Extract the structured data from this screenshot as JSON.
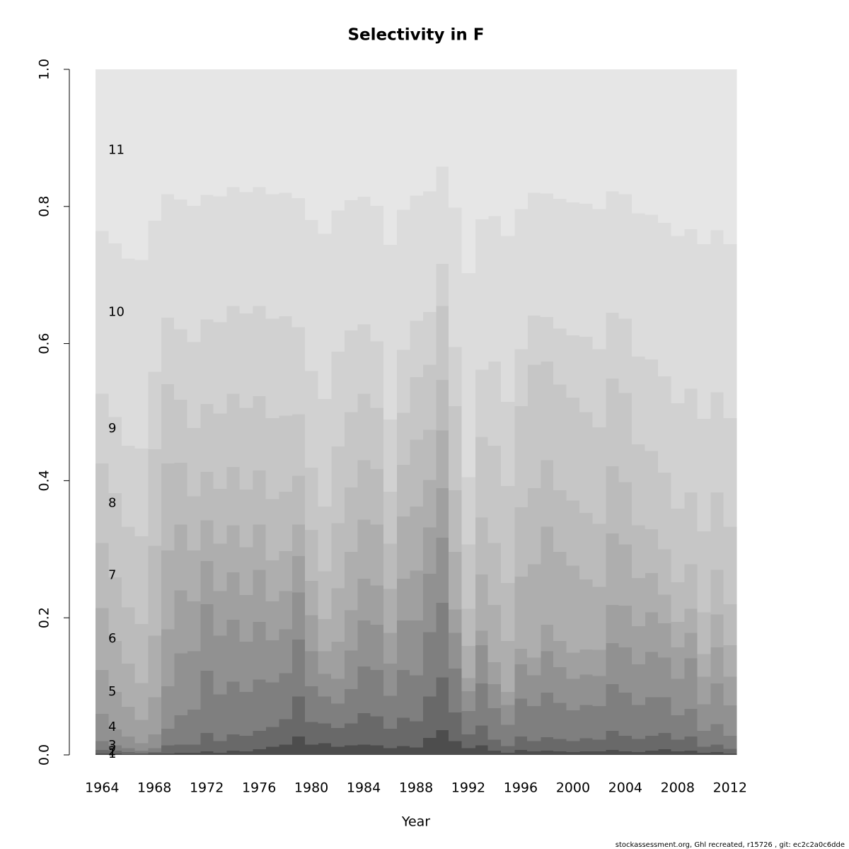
{
  "chart_data": {
    "type": "stacked-bar",
    "title": "Selectivity in F",
    "x_label": "Year",
    "footer": "stockassessment.org, Ghl  recreated, r15726 , git: ec2c2a0c6dde",
    "x": [
      1964,
      1965,
      1966,
      1967,
      1968,
      1969,
      1970,
      1971,
      1972,
      1973,
      1974,
      1975,
      1976,
      1977,
      1978,
      1979,
      1980,
      1981,
      1982,
      1983,
      1984,
      1985,
      1986,
      1987,
      1988,
      1989,
      1990,
      1991,
      1992,
      1993,
      1994,
      1995,
      1996,
      1997,
      1998,
      1999,
      2000,
      2001,
      2002,
      2003,
      2004,
      2005,
      2006,
      2007,
      2008,
      2009,
      2010,
      2011,
      2012
    ],
    "xlim": [
      1963.5,
      2012.5
    ],
    "xticks": [
      1964,
      1968,
      1972,
      1976,
      1980,
      1984,
      1988,
      1992,
      1996,
      2000,
      2004,
      2008,
      2012
    ],
    "ylim": [
      0,
      1
    ],
    "yticks": [
      {
        "value": 0,
        "label": "0.0"
      },
      0.2,
      0.4,
      0.6,
      0.8,
      {
        "value": 1,
        "label": "1.0"
      }
    ],
    "grid": false,
    "series": [
      {
        "name": "1",
        "color": "#4d4d4d",
        "values": [
          0.002,
          0.002,
          0.001,
          0.001,
          0.002,
          0.002,
          0.003,
          0.003,
          0.005,
          0.003,
          0.006,
          0.005,
          0.008,
          0.012,
          0.015,
          0.027,
          0.015,
          0.017,
          0.012,
          0.014,
          0.015,
          0.014,
          0.01,
          0.013,
          0.011,
          0.025,
          0.036,
          0.02,
          0.01,
          0.014,
          0.006,
          0.003,
          0.007,
          0.005,
          0.006,
          0.005,
          0.004,
          0.005,
          0.005,
          0.007,
          0.005,
          0.004,
          0.006,
          0.008,
          0.005,
          0.006,
          0.003,
          0.004,
          0.002
        ]
      },
      {
        "name": "2",
        "color": "#696969",
        "values": [
          0.005,
          0.004,
          0.003,
          0.002,
          0.002,
          0.012,
          0.012,
          0.012,
          0.027,
          0.017,
          0.024,
          0.023,
          0.027,
          0.029,
          0.037,
          0.058,
          0.033,
          0.029,
          0.027,
          0.032,
          0.046,
          0.042,
          0.028,
          0.041,
          0.038,
          0.06,
          0.077,
          0.042,
          0.02,
          0.029,
          0.016,
          0.01,
          0.02,
          0.015,
          0.02,
          0.018,
          0.016,
          0.019,
          0.017,
          0.028,
          0.023,
          0.019,
          0.022,
          0.024,
          0.017,
          0.021,
          0.009,
          0.011,
          0.007
        ]
      },
      {
        "name": "3",
        "color": "#7f7f7f",
        "values": [
          0.013,
          0.008,
          0.006,
          0.003,
          0.006,
          0.024,
          0.043,
          0.051,
          0.091,
          0.068,
          0.077,
          0.064,
          0.075,
          0.065,
          0.067,
          0.083,
          0.052,
          0.039,
          0.036,
          0.05,
          0.068,
          0.068,
          0.048,
          0.07,
          0.067,
          0.094,
          0.109,
          0.064,
          0.034,
          0.061,
          0.046,
          0.031,
          0.055,
          0.051,
          0.065,
          0.053,
          0.045,
          0.049,
          0.049,
          0.068,
          0.063,
          0.05,
          0.056,
          0.052,
          0.036,
          0.04,
          0.023,
          0.03,
          0.019
        ]
      },
      {
        "name": "4",
        "color": "#919191",
        "values": [
          0.04,
          0.023,
          0.017,
          0.011,
          0.02,
          0.062,
          0.09,
          0.085,
          0.097,
          0.086,
          0.09,
          0.073,
          0.084,
          0.061,
          0.064,
          0.069,
          0.051,
          0.033,
          0.036,
          0.056,
          0.067,
          0.066,
          0.047,
          0.072,
          0.08,
          0.085,
          0.095,
          0.052,
          0.029,
          0.056,
          0.035,
          0.029,
          0.05,
          0.045,
          0.06,
          0.052,
          0.046,
          0.044,
          0.044,
          0.06,
          0.066,
          0.059,
          0.066,
          0.058,
          0.053,
          0.074,
          0.039,
          0.059,
          0.044
        ]
      },
      {
        "name": "5",
        "color": "#a0a0a0",
        "values": [
          0.064,
          0.055,
          0.043,
          0.034,
          0.054,
          0.083,
          0.092,
          0.073,
          0.063,
          0.065,
          0.069,
          0.068,
          0.076,
          0.057,
          0.056,
          0.053,
          0.053,
          0.033,
          0.054,
          0.059,
          0.061,
          0.057,
          0.045,
          0.061,
          0.073,
          0.068,
          0.072,
          0.034,
          0.019,
          0.021,
          0.032,
          0.019,
          0.023,
          0.026,
          0.039,
          0.038,
          0.038,
          0.037,
          0.038,
          0.056,
          0.061,
          0.056,
          0.058,
          0.05,
          0.046,
          0.037,
          0.04,
          0.053,
          0.042
        ]
      },
      {
        "name": "6",
        "color": "#aeaeae",
        "values": [
          0.09,
          0.074,
          0.063,
          0.054,
          0.09,
          0.115,
          0.096,
          0.074,
          0.059,
          0.069,
          0.069,
          0.07,
          0.066,
          0.06,
          0.058,
          0.046,
          0.05,
          0.047,
          0.078,
          0.085,
          0.086,
          0.089,
          0.064,
          0.091,
          0.093,
          0.069,
          0.084,
          0.084,
          0.047,
          0.082,
          0.084,
          0.074,
          0.105,
          0.136,
          0.143,
          0.13,
          0.127,
          0.102,
          0.092,
          0.104,
          0.089,
          0.07,
          0.057,
          0.042,
          0.037,
          0.035,
          0.033,
          0.048,
          0.046
        ]
      },
      {
        "name": "7",
        "color": "#bbbbbb",
        "values": [
          0.095,
          0.093,
          0.082,
          0.086,
          0.131,
          0.127,
          0.09,
          0.079,
          0.071,
          0.08,
          0.085,
          0.084,
          0.079,
          0.089,
          0.087,
          0.071,
          0.074,
          0.07,
          0.095,
          0.094,
          0.087,
          0.081,
          0.066,
          0.075,
          0.098,
          0.073,
          0.074,
          0.09,
          0.054,
          0.083,
          0.09,
          0.085,
          0.101,
          0.111,
          0.097,
          0.09,
          0.095,
          0.097,
          0.092,
          0.098,
          0.091,
          0.077,
          0.064,
          0.066,
          0.058,
          0.065,
          0.061,
          0.065,
          0.06
        ]
      },
      {
        "name": "8",
        "color": "#c6c6c6",
        "values": [
          0.116,
          0.123,
          0.118,
          0.128,
          0.141,
          0.116,
          0.092,
          0.1,
          0.099,
          0.11,
          0.107,
          0.119,
          0.108,
          0.118,
          0.111,
          0.09,
          0.091,
          0.094,
          0.112,
          0.11,
          0.097,
          0.089,
          0.076,
          0.076,
          0.091,
          0.095,
          0.108,
          0.123,
          0.094,
          0.118,
          0.142,
          0.141,
          0.148,
          0.18,
          0.144,
          0.154,
          0.15,
          0.147,
          0.141,
          0.128,
          0.13,
          0.118,
          0.114,
          0.112,
          0.107,
          0.105,
          0.118,
          0.113,
          0.113
        ]
      },
      {
        "name": "9",
        "color": "#d1d1d1",
        "values": [
          0.102,
          0.111,
          0.118,
          0.128,
          0.113,
          0.097,
          0.103,
          0.125,
          0.123,
          0.133,
          0.128,
          0.138,
          0.132,
          0.145,
          0.145,
          0.127,
          0.141,
          0.157,
          0.138,
          0.119,
          0.101,
          0.097,
          0.105,
          0.092,
          0.082,
          0.077,
          0.061,
          0.086,
          0.098,
          0.098,
          0.123,
          0.123,
          0.083,
          0.072,
          0.065,
          0.082,
          0.091,
          0.11,
          0.114,
          0.096,
          0.108,
          0.128,
          0.134,
          0.14,
          0.154,
          0.151,
          0.164,
          0.146,
          0.158
        ]
      },
      {
        "name": "10",
        "color": "#dcdcdc",
        "values": [
          0.237,
          0.253,
          0.273,
          0.275,
          0.22,
          0.18,
          0.189,
          0.199,
          0.182,
          0.184,
          0.173,
          0.177,
          0.173,
          0.182,
          0.18,
          0.188,
          0.22,
          0.241,
          0.206,
          0.19,
          0.186,
          0.198,
          0.255,
          0.204,
          0.183,
          0.176,
          0.142,
          0.203,
          0.298,
          0.219,
          0.212,
          0.242,
          0.204,
          0.179,
          0.18,
          0.189,
          0.194,
          0.194,
          0.204,
          0.177,
          0.182,
          0.209,
          0.211,
          0.224,
          0.244,
          0.233,
          0.255,
          0.236,
          0.254
        ]
      },
      {
        "name": "11",
        "color": "#e6e6e6",
        "values": [
          0.236,
          0.254,
          0.276,
          0.278,
          0.221,
          0.182,
          0.19,
          0.199,
          0.183,
          0.185,
          0.172,
          0.179,
          0.172,
          0.182,
          0.18,
          0.188,
          0.22,
          0.24,
          0.206,
          0.191,
          0.186,
          0.199,
          0.256,
          0.205,
          0.184,
          0.178,
          0.142,
          0.202,
          0.297,
          0.219,
          0.214,
          0.243,
          0.204,
          0.18,
          0.181,
          0.189,
          0.194,
          0.196,
          0.204,
          0.178,
          0.182,
          0.21,
          0.212,
          0.224,
          0.243,
          0.233,
          0.255,
          0.235,
          0.255
        ]
      }
    ]
  }
}
